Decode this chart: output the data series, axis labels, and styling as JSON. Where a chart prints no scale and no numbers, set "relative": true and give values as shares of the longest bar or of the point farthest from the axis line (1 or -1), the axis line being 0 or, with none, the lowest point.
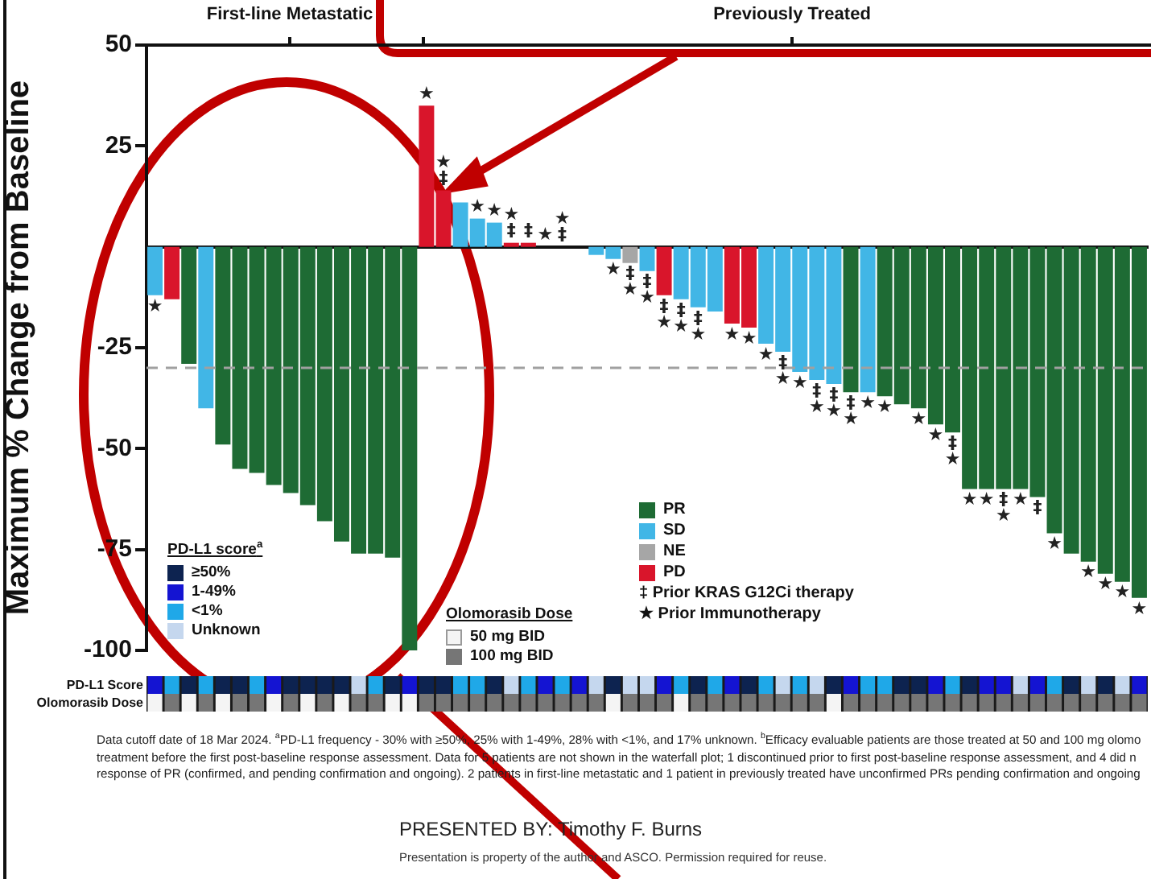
{
  "chart_data": [
    {
      "type": "bar",
      "ylabel": "Maximum % Change from Baseline",
      "categories": [
        null,
        null,
        null,
        null,
        null,
        null,
        null,
        null,
        null,
        null,
        null,
        null,
        null,
        null,
        null,
        null,
        null,
        null,
        null,
        null,
        null,
        null,
        null,
        null,
        null,
        null,
        null,
        null,
        null,
        null,
        null,
        null,
        null,
        null,
        null,
        null,
        null,
        null,
        null,
        null,
        null,
        null,
        null,
        null,
        null,
        null,
        null,
        null,
        null,
        null,
        null,
        null,
        null,
        null,
        null,
        null,
        null,
        null,
        null
      ],
      "series": [
        {
          "name": "PR",
          "color": "#1e6b34",
          "values": [
            null,
            null,
            -29,
            null,
            -49,
            -55,
            -56,
            -59,
            -61,
            -64,
            -68,
            -73,
            -76,
            -76,
            -77,
            -100,
            null,
            null,
            null,
            null,
            null,
            null,
            null,
            null,
            null,
            null,
            null,
            null,
            null,
            null,
            null,
            null,
            null,
            null,
            null,
            null,
            null,
            null,
            null,
            null,
            null,
            -36,
            null,
            -37,
            -39,
            -40,
            -44,
            -46,
            -60,
            -60,
            -60,
            -60,
            -62,
            -71,
            -76,
            -78,
            -81,
            -83,
            -87
          ],
          "value_labels": [
            null,
            null,
            null,
            null,
            null,
            null,
            null,
            null,
            null,
            null,
            null,
            null,
            null,
            null,
            null,
            null,
            null,
            null,
            null,
            null,
            null,
            null,
            null,
            null,
            null,
            null,
            null,
            null,
            null,
            null,
            null,
            null,
            null,
            null,
            null,
            null,
            null,
            null,
            null,
            null,
            null,
            "‡★",
            null,
            "★",
            null,
            "★",
            "★",
            "‡★",
            "★",
            "★",
            "‡★",
            "★",
            "‡",
            "★",
            null,
            "★",
            "★",
            "★",
            "★"
          ]
        },
        {
          "name": "SD",
          "color": "#41b6e6",
          "values": [
            -12,
            null,
            null,
            -40,
            null,
            null,
            null,
            null,
            null,
            null,
            null,
            null,
            null,
            null,
            null,
            null,
            null,
            null,
            11,
            7,
            6,
            null,
            null,
            0,
            0,
            0,
            -2,
            -3,
            null,
            -6,
            null,
            -13,
            -15,
            -16,
            null,
            null,
            -24,
            -26,
            -31,
            -33,
            -34,
            null,
            -36,
            null,
            null,
            null,
            null,
            null,
            null,
            null,
            null,
            null,
            null,
            null,
            null,
            null,
            null,
            null,
            null
          ],
          "value_labels": [
            "★",
            null,
            null,
            null,
            null,
            null,
            null,
            null,
            null,
            null,
            null,
            null,
            null,
            null,
            null,
            null,
            null,
            null,
            null,
            "★",
            "★",
            null,
            null,
            "★",
            "‡★",
            null,
            null,
            "★",
            null,
            "‡★",
            null,
            "‡★",
            "‡★",
            null,
            null,
            null,
            "★",
            "‡★",
            "★",
            "‡★",
            "‡★",
            null,
            "★",
            null,
            null,
            null,
            null,
            null,
            null,
            null,
            null,
            null,
            null,
            null,
            null,
            null,
            null,
            null,
            null
          ]
        },
        {
          "name": "NE",
          "color": "#a6a6a6",
          "values": [
            null,
            null,
            null,
            null,
            null,
            null,
            null,
            null,
            null,
            null,
            null,
            null,
            null,
            null,
            null,
            null,
            null,
            null,
            null,
            null,
            null,
            null,
            null,
            null,
            null,
            null,
            null,
            null,
            -4,
            null,
            null,
            null,
            null,
            null,
            null,
            null,
            null,
            null,
            null,
            null,
            null,
            null,
            null,
            null,
            null,
            null,
            null,
            null,
            null,
            null,
            null,
            null,
            null,
            null,
            null,
            null,
            null,
            null,
            null
          ],
          "value_labels": [
            null,
            null,
            null,
            null,
            null,
            null,
            null,
            null,
            null,
            null,
            null,
            null,
            null,
            null,
            null,
            null,
            null,
            null,
            null,
            null,
            null,
            null,
            null,
            null,
            null,
            null,
            null,
            null,
            "‡★",
            null,
            null,
            null,
            null,
            null,
            null,
            null,
            null,
            null,
            null,
            null,
            null,
            null,
            null,
            null,
            null,
            null,
            null,
            null,
            null,
            null,
            null,
            null,
            null,
            null,
            null,
            null,
            null,
            null,
            null
          ]
        },
        {
          "name": "PD",
          "color": "#d9152b",
          "values": [
            null,
            -13,
            null,
            null,
            null,
            null,
            null,
            null,
            null,
            null,
            null,
            null,
            null,
            null,
            null,
            null,
            35,
            14,
            null,
            null,
            null,
            1,
            1,
            null,
            null,
            null,
            null,
            null,
            null,
            null,
            -12,
            null,
            null,
            null,
            -19,
            -20,
            null,
            null,
            null,
            null,
            null,
            null,
            null,
            null,
            null,
            null,
            null,
            null,
            null,
            null,
            null,
            null,
            null,
            null,
            null,
            null,
            null,
            null,
            null
          ],
          "value_labels": [
            null,
            null,
            null,
            null,
            null,
            null,
            null,
            null,
            null,
            null,
            null,
            null,
            null,
            null,
            null,
            null,
            "★",
            "‡★",
            null,
            null,
            null,
            "‡★",
            "‡",
            null,
            null,
            null,
            null,
            null,
            null,
            null,
            "‡★",
            null,
            null,
            null,
            "★",
            "★",
            null,
            null,
            null,
            null,
            null,
            null,
            null,
            null,
            null,
            null,
            null,
            null,
            null,
            null,
            null,
            null,
            null,
            null,
            null,
            null,
            null,
            null,
            null
          ]
        }
      ],
      "ylim": [
        -100,
        50
      ],
      "yticks": [
        -100,
        -75,
        -50,
        -25,
        25,
        50
      ],
      "ref_lines": [
        {
          "axis": "y",
          "value": -30,
          "label": null,
          "color": "#a0a0a0",
          "line_style": "dashed"
        }
      ],
      "grid": false,
      "legend": "bottom",
      "annotations": [
        "First-line Metastatic",
        "Previously Treated",
        "‡ Prior KRAS G12Ci therapy",
        "★ Prior Immunotherapy",
        "Data cutoff date of 18 Mar 2024. $^{a}$PD-L1 frequency - 30% with ≥50%, 25% with 1-49%, 28% with <1%, and 17% unknown. $^{b}$Efficacy evaluable patients are those treated at 50 and 100 mg olomo",
        "treatment before the first post-baseline response assessment. Data for 5 patients are not shown in the waterfall plot; 1 discontinued prior to first post-baseline response assessment, and 4 did n",
        "response of PR (confirmed, and pending confirmation and ongoing). 2 patients in first-line metastatic and 1 patient in previously treated have unconfirmed PRs pending confirmation and ongoing",
        "PRESENTED BY: Timothy F. Burns",
        "Presentation is property of the author and ASCO. Permission required for reuse."
      ]
    },
    {
      "type": "bar",
      "relative": true,
      "ylabel": "PD-L1 Score",
      "legend_title": "PD-L1 score$^{a}$",
      "legend": "top left",
      "categories": [
        null,
        null,
        null,
        null,
        null,
        null,
        null,
        null,
        null,
        null,
        null,
        null,
        null,
        null,
        null,
        null,
        null,
        null,
        null,
        null,
        null,
        null,
        null,
        null,
        null,
        null,
        null,
        null,
        null,
        null,
        null,
        null,
        null,
        null,
        null,
        null,
        null,
        null,
        null,
        null,
        null,
        null,
        null,
        null,
        null,
        null,
        null,
        null,
        null,
        null,
        null,
        null,
        null,
        null,
        null,
        null,
        null,
        null,
        null
      ],
      "series": [
        {
          "name": "≥50%",
          "color": "#0d2350",
          "values": [
            null,
            null,
            1,
            null,
            1,
            1,
            null,
            null,
            1,
            1,
            1,
            1,
            null,
            null,
            1,
            null,
            1,
            1,
            null,
            null,
            1,
            null,
            null,
            null,
            null,
            null,
            null,
            1,
            null,
            null,
            null,
            null,
            1,
            null,
            null,
            1,
            null,
            null,
            null,
            null,
            1,
            null,
            null,
            null,
            1,
            1,
            null,
            null,
            1,
            null,
            null,
            null,
            null,
            null,
            1,
            null,
            1,
            null,
            null
          ]
        },
        {
          "name": "1-49%",
          "color": "#1414d2",
          "values": [
            1,
            null,
            null,
            null,
            null,
            null,
            null,
            1,
            null,
            null,
            null,
            null,
            null,
            null,
            null,
            1,
            null,
            null,
            null,
            null,
            null,
            null,
            null,
            1,
            null,
            1,
            null,
            null,
            null,
            null,
            1,
            null,
            null,
            null,
            1,
            null,
            null,
            null,
            null,
            null,
            null,
            1,
            null,
            null,
            null,
            null,
            1,
            null,
            null,
            1,
            1,
            null,
            1,
            null,
            null,
            null,
            null,
            null,
            1
          ]
        },
        {
          "name": "<1%",
          "color": "#1fa8e8",
          "values": [
            null,
            1,
            null,
            1,
            null,
            null,
            1,
            null,
            null,
            null,
            null,
            null,
            null,
            1,
            null,
            null,
            null,
            null,
            1,
            1,
            null,
            null,
            1,
            null,
            1,
            null,
            null,
            null,
            null,
            null,
            null,
            1,
            null,
            1,
            null,
            null,
            1,
            null,
            1,
            null,
            null,
            null,
            1,
            1,
            null,
            null,
            null,
            1,
            null,
            null,
            null,
            null,
            null,
            1,
            null,
            null,
            null,
            null,
            null
          ]
        },
        {
          "name": "Unknown",
          "color": "#c5d7ee",
          "values": [
            null,
            null,
            null,
            null,
            null,
            null,
            null,
            null,
            null,
            null,
            null,
            null,
            1,
            null,
            null,
            null,
            null,
            null,
            null,
            null,
            null,
            1,
            null,
            null,
            null,
            null,
            1,
            null,
            1,
            1,
            null,
            null,
            null,
            null,
            null,
            null,
            null,
            1,
            null,
            1,
            null,
            null,
            null,
            null,
            null,
            null,
            null,
            null,
            null,
            null,
            null,
            1,
            null,
            null,
            null,
            1,
            null,
            1,
            null
          ]
        }
      ]
    },
    {
      "type": "bar",
      "relative": true,
      "ylabel": "Olomorasib Dose",
      "legend_title": "Olomorasib Dose",
      "legend": "top",
      "categories": [
        null,
        null,
        null,
        null,
        null,
        null,
        null,
        null,
        null,
        null,
        null,
        null,
        null,
        null,
        null,
        null,
        null,
        null,
        null,
        null,
        null,
        null,
        null,
        null,
        null,
        null,
        null,
        null,
        null,
        null,
        null,
        null,
        null,
        null,
        null,
        null,
        null,
        null,
        null,
        null,
        null,
        null,
        null,
        null,
        null,
        null,
        null,
        null,
        null,
        null,
        null,
        null,
        null,
        null,
        null,
        null,
        null,
        null,
        null
      ],
      "series": [
        {
          "name": "50 mg BID",
          "color": "#f4f4f4",
          "values": [
            1,
            null,
            1,
            null,
            1,
            null,
            null,
            1,
            null,
            1,
            null,
            1,
            null,
            null,
            1,
            1,
            null,
            null,
            null,
            null,
            null,
            null,
            null,
            null,
            null,
            null,
            null,
            1,
            null,
            null,
            null,
            1,
            null,
            null,
            null,
            null,
            null,
            null,
            null,
            null,
            1,
            null,
            null,
            null,
            null,
            null,
            null,
            null,
            null,
            null,
            null,
            null,
            null,
            null,
            null,
            null,
            null,
            null,
            null
          ]
        },
        {
          "name": "100 mg BID",
          "color": "#767676",
          "values": [
            null,
            1,
            null,
            1,
            null,
            1,
            1,
            null,
            1,
            null,
            1,
            null,
            1,
            1,
            null,
            null,
            1,
            1,
            1,
            1,
            1,
            1,
            1,
            1,
            1,
            1,
            1,
            null,
            1,
            1,
            1,
            null,
            1,
            1,
            1,
            1,
            1,
            1,
            1,
            1,
            null,
            1,
            1,
            1,
            1,
            1,
            1,
            1,
            1,
            1,
            1,
            1,
            1,
            1,
            1,
            1,
            1,
            1,
            1
          ]
        }
      ]
    }
  ]
}
